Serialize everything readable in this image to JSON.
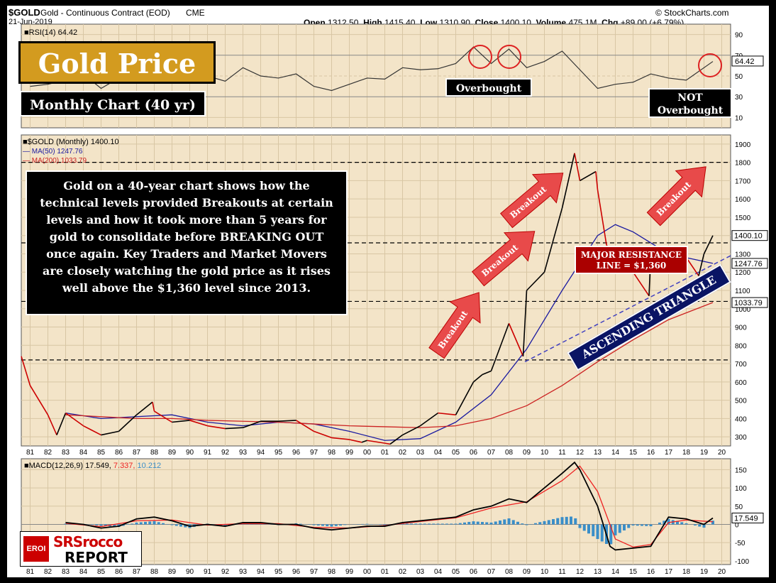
{
  "header": {
    "symbol": "$GOLD",
    "name": "Gold - Continuous Contract (EOD)",
    "exchange": "CME",
    "watermark": "© StockCharts.com",
    "date": "21-Jun-2019",
    "open_label": "Open",
    "open": "1312.50",
    "high_label": "High",
    "high": "1415.40",
    "low_label": "Low",
    "low": "1310.90",
    "close_label": "Close",
    "close": "1400.10",
    "volume_label": "Volume",
    "volume": "475.1M",
    "chg_label": "Chg",
    "chg": "+89.00 (+6.79%)"
  },
  "annotations": {
    "title": "Gold Price",
    "subtitle": "Monthly Chart (40 yr)",
    "overbought": "Overbought",
    "not_overbought_1": "NOT",
    "not_overbought_2": "Overbought",
    "commentary": "Gold on a 40-year chart shows how the technical levels provided Breakouts at certain levels and how it took more than 5 years for gold to consolidate before BREAKING OUT once again. Key Traders and Market Movers are closely watching the gold price as it rises well above the $1,360 level since 2013.",
    "breakout": "Breakout",
    "resistance_1": "MAJOR RESISTANCE",
    "resistance_2": "LINE = $1,360",
    "triangle": "ASCENDING TRIANGLE"
  },
  "logo": {
    "eroi": "EROI",
    "line1": "SRSrocco",
    "line2": "REPORT"
  },
  "colors": {
    "price_up": "#000000",
    "price_down": "#cc0000",
    "ma50": "#1a1aa0",
    "ma200": "#cc2222",
    "panel_bg": "#f3e4c8",
    "macd_hist": "#3a8ec8",
    "accent": "#d39b1f"
  },
  "chart_data": [
    {
      "type": "line",
      "panel": "RSI",
      "legend": "RSI(14) 64.42",
      "last_value_label": "64.42",
      "yticks": [
        "90",
        "70",
        "50",
        "30",
        "10"
      ],
      "ylim": [
        0,
        100
      ],
      "x": [
        1981,
        1982,
        1983,
        1984,
        1985,
        1986,
        1987,
        1988,
        1989,
        1990,
        1991,
        1992,
        1993,
        1994,
        1995,
        1996,
        1997,
        1998,
        1999,
        2000,
        2001,
        2002,
        2003,
        2004,
        2005,
        2006,
        2007,
        2008,
        2009,
        2010,
        2011,
        2012,
        2013,
        2014,
        2015,
        2016,
        2017,
        2018,
        2019.5
      ],
      "values": [
        40,
        42,
        46,
        52,
        38,
        48,
        62,
        52,
        44,
        47,
        50,
        45,
        58,
        50,
        48,
        52,
        40,
        36,
        42,
        48,
        47,
        58,
        56,
        57,
        62,
        78,
        62,
        76,
        58,
        64,
        74,
        56,
        38,
        42,
        44,
        52,
        48,
        46,
        64
      ],
      "series": [
        {
          "name": "RSI(14)",
          "value": 64.42
        }
      ]
    },
    {
      "type": "line",
      "panel": "Price",
      "legend": "$GOLD (Monthly) 1400.10",
      "ma50_label": "MA(50) 1247.76",
      "ma200_label": "MA(200) 1033.79",
      "last_price_label": "1400.10",
      "ma50_last_label": "1247.76",
      "ma200_last_label": "1033.79",
      "yticks": [
        "1900",
        "1800",
        "1700",
        "1600",
        "1500",
        "1400",
        "1300",
        "1200",
        "1100",
        "1000",
        "900",
        "800",
        "700",
        "600",
        "500",
        "400",
        "300"
      ],
      "ylim": [
        250,
        1950
      ],
      "xticks": [
        "81",
        "82",
        "83",
        "84",
        "85",
        "86",
        "87",
        "88",
        "89",
        "90",
        "91",
        "92",
        "93",
        "94",
        "95",
        "96",
        "97",
        "98",
        "99",
        "00",
        "01",
        "02",
        "03",
        "04",
        "05",
        "06",
        "07",
        "08",
        "09",
        "10",
        "11",
        "12",
        "13",
        "14",
        "15",
        "16",
        "17",
        "18",
        "19",
        "20"
      ],
      "support_levels": [
        1800,
        1360,
        1040,
        720
      ],
      "x": [
        1980.5,
        1981,
        1982,
        1982.5,
        1983,
        1984,
        1985,
        1986,
        1987,
        1987.9,
        1988,
        1989,
        1990,
        1991,
        1992,
        1993,
        1994,
        1995,
        1996,
        1997,
        1998,
        1999,
        1999.7,
        2000,
        2001,
        2001.3,
        2002,
        2003,
        2004,
        2005,
        2006,
        2006.5,
        2007,
        2008,
        2008.8,
        2009,
        2010,
        2011,
        2011.7,
        2012,
        2012.9,
        2013,
        2013.5,
        2014,
        2015,
        2015.9,
        2016,
        2016.5,
        2017,
        2018,
        2018.7,
        2019,
        2019.5
      ],
      "values": [
        740,
        580,
        420,
        310,
        430,
        360,
        310,
        330,
        420,
        490,
        440,
        380,
        390,
        360,
        345,
        350,
        385,
        385,
        390,
        330,
        295,
        285,
        270,
        280,
        265,
        260,
        310,
        360,
        430,
        420,
        600,
        640,
        660,
        920,
        740,
        1100,
        1200,
        1550,
        1850,
        1700,
        1750,
        1650,
        1350,
        1250,
        1200,
        1070,
        1300,
        1320,
        1250,
        1280,
        1180,
        1300,
        1400
      ],
      "series": [
        {
          "name": "MA(50)",
          "x": [
            1983,
            1985,
            1987,
            1989,
            1991,
            1993,
            1995,
            1997,
            1999,
            2001,
            2003,
            2005,
            2007,
            2009,
            2011,
            2013,
            2014,
            2015,
            2017,
            2019.5
          ],
          "values": [
            430,
            400,
            410,
            420,
            380,
            360,
            380,
            370,
            330,
            280,
            290,
            380,
            530,
            780,
            1100,
            1400,
            1460,
            1420,
            1300,
            1248
          ]
        },
        {
          "name": "MA(200)",
          "x": [
            1983,
            1985,
            1987,
            1989,
            1991,
            1993,
            1995,
            1997,
            1999,
            2001,
            2003,
            2005,
            2007,
            2009,
            2011,
            2013,
            2015,
            2017,
            2019.5
          ],
          "values": [
            420,
            410,
            400,
            400,
            390,
            385,
            380,
            370,
            360,
            355,
            350,
            360,
            400,
            470,
            580,
            710,
            830,
            940,
            1034
          ]
        }
      ]
    },
    {
      "type": "line",
      "panel": "MACD",
      "legend_prefix": "MACD(12,26,9)",
      "legend_macd": "17.549",
      "legend_signal": "7.337",
      "legend_hist": "10.212",
      "last_value_label": "17.549",
      "yticks": [
        "150",
        "100",
        "50",
        "0",
        "-50",
        "-100"
      ],
      "ylim": [
        -110,
        180
      ],
      "xticks": [
        "81",
        "82",
        "83",
        "84",
        "85",
        "86",
        "87",
        "88",
        "89",
        "90",
        "91",
        "92",
        "93",
        "94",
        "95",
        "96",
        "97",
        "98",
        "99",
        "00",
        "01",
        "02",
        "03",
        "04",
        "05",
        "06",
        "07",
        "08",
        "09",
        "10",
        "11",
        "12",
        "13",
        "14",
        "15",
        "16",
        "17",
        "18",
        "19",
        "20"
      ],
      "x": [
        1983,
        1984,
        1985,
        1986,
        1987,
        1988,
        1989,
        1990,
        1991,
        1992,
        1993,
        1994,
        1995,
        1996,
        1997,
        1998,
        1999,
        2000,
        2001,
        2002,
        2003,
        2004,
        2005,
        2006,
        2007,
        2008,
        2009,
        2010,
        2011,
        2011.7,
        2012,
        2013,
        2013.7,
        2014,
        2015,
        2016,
        2017,
        2018,
        2019,
        2019.5
      ],
      "values": [
        5,
        0,
        -10,
        -5,
        15,
        20,
        10,
        -5,
        0,
        -5,
        5,
        5,
        0,
        0,
        -10,
        -15,
        -10,
        -5,
        -5,
        5,
        10,
        15,
        20,
        40,
        50,
        70,
        60,
        100,
        140,
        170,
        150,
        50,
        -60,
        -70,
        -65,
        -60,
        20,
        15,
        0,
        17.5
      ],
      "series": [
        {
          "name": "MACD",
          "value": 17.549
        },
        {
          "name": "Signal",
          "value": 7.337,
          "x": [
            1983,
            1985,
            1987,
            1989,
            1991,
            1993,
            1995,
            1997,
            1999,
            2001,
            2003,
            2005,
            2007,
            2009,
            2011,
            2012,
            2013,
            2014,
            2015,
            2016,
            2017,
            2018,
            2019.5
          ],
          "values": [
            3,
            -6,
            10,
            12,
            -2,
            2,
            2,
            -8,
            -10,
            -3,
            8,
            18,
            45,
            62,
            120,
            160,
            90,
            -40,
            -62,
            -55,
            5,
            12,
            7.3
          ]
        },
        {
          "name": "Histogram",
          "value": 10.212
        }
      ]
    }
  ]
}
